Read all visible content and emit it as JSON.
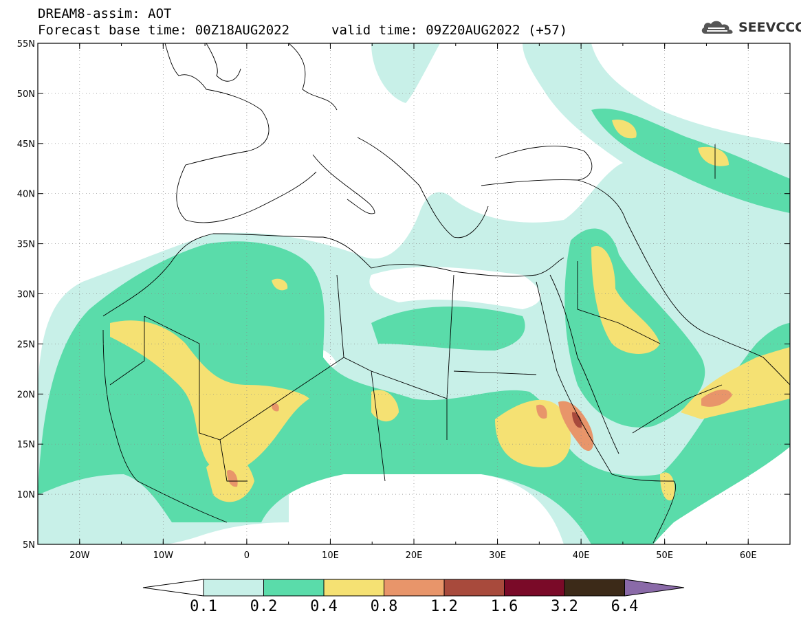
{
  "header": {
    "title_line1": "DREAM8-assim: AOT",
    "title_line2": "Forecast base time: 00Z18AUG2022",
    "valid_time": "valid time: 09Z20AUG2022 (+57)",
    "logo_text": "SEEVCCC"
  },
  "axes": {
    "lon_labels": [
      "20W",
      "10W",
      "0",
      "10E",
      "20E",
      "30E",
      "40E",
      "50E",
      "60E"
    ],
    "lon_values": [
      -20,
      -10,
      0,
      10,
      20,
      30,
      40,
      50,
      60
    ],
    "lat_labels": [
      "55N",
      "50N",
      "45N",
      "40N",
      "35N",
      "30N",
      "25N",
      "20N",
      "15N",
      "10N",
      "5N"
    ],
    "lat_values": [
      55,
      50,
      45,
      40,
      35,
      30,
      25,
      20,
      15,
      10,
      5
    ],
    "lon_range": [
      -25,
      65
    ],
    "lat_range": [
      5,
      55
    ]
  },
  "colorbar": {
    "labels": [
      "0.1",
      "0.2",
      "0.4",
      "0.8",
      "1.2",
      "1.6",
      "3.2",
      "6.4"
    ],
    "colors": [
      "#ffffff",
      "#c8f0e8",
      "#5adcaa",
      "#f5e173",
      "#e8956a",
      "#a84a3c",
      "#7a0a28",
      "#3c2a18",
      "#8a6aa8"
    ]
  },
  "colors": {
    "c01": "#c8f0e8",
    "c02": "#5adcaa",
    "c04": "#f5e173",
    "c08": "#e8956a",
    "c12": "#a84a3c"
  }
}
